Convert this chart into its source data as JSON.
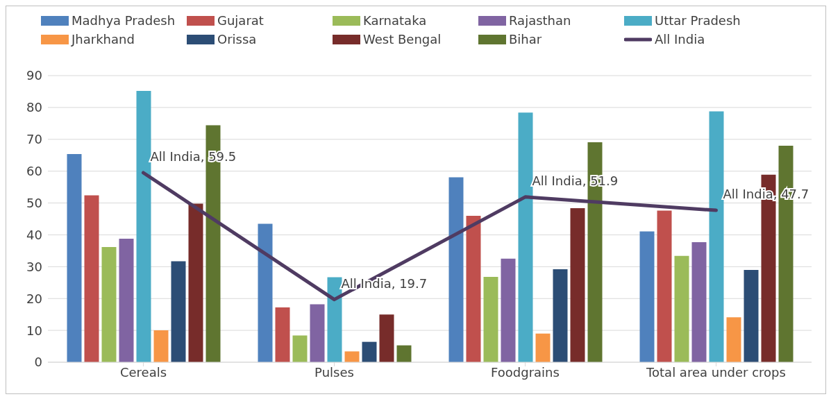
{
  "chart_data": {
    "type": "bar",
    "categories": [
      "Cereals",
      "Pulses",
      "Foodgrains",
      "Total area under crops"
    ],
    "series": [
      {
        "name": "Madhya Pradesh",
        "color": "#4f81bd",
        "values": [
          65.4,
          43.5,
          58.1,
          41.1
        ]
      },
      {
        "name": "Gujarat",
        "color": "#c0504d",
        "values": [
          52.4,
          17.2,
          46.0,
          47.6
        ]
      },
      {
        "name": "Karnataka",
        "color": "#9bbb59",
        "values": [
          36.2,
          8.4,
          26.8,
          33.4
        ]
      },
      {
        "name": "Rajasthan",
        "color": "#8064a2",
        "values": [
          38.8,
          18.2,
          32.5,
          37.7
        ]
      },
      {
        "name": "Uttar Pradesh",
        "color": "#4bacc6",
        "values": [
          85.2,
          26.7,
          78.4,
          78.8
        ]
      },
      {
        "name": "Jharkhand",
        "color": "#f79646",
        "values": [
          10.0,
          3.4,
          9.0,
          14.1
        ]
      },
      {
        "name": "Orissa",
        "color": "#2c4d75",
        "values": [
          31.7,
          6.4,
          29.2,
          29.0
        ]
      },
      {
        "name": "West Bengal",
        "color": "#772c2a",
        "values": [
          49.8,
          15.0,
          48.4,
          58.9
        ]
      },
      {
        "name": "Bihar",
        "color": "#5f7530",
        "values": [
          74.4,
          5.3,
          69.1,
          68.0
        ]
      },
      {
        "name": "All India",
        "type": "line",
        "color": "#4f3b62",
        "values": [
          59.5,
          19.7,
          51.9,
          47.7
        ],
        "value_labels": [
          "All India, 59.5",
          "All India, 19.7",
          "All India, 51.9",
          "All India, 47.7"
        ]
      }
    ],
    "ylim": [
      0,
      90
    ],
    "yticks": [
      0,
      10,
      20,
      30,
      40,
      50,
      60,
      70,
      80,
      90
    ],
    "grid": "y",
    "legend": "top",
    "marker": "none",
    "line_style": "solid"
  }
}
